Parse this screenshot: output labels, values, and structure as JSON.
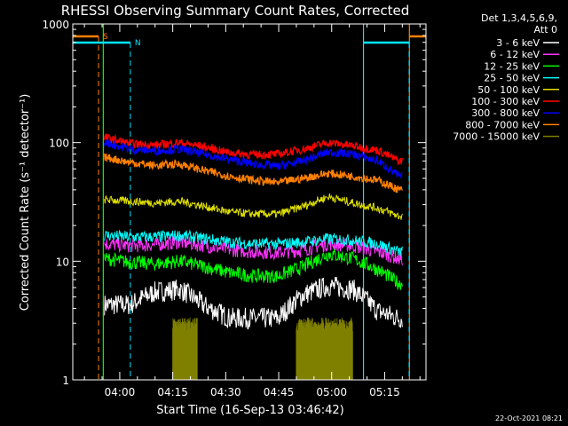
{
  "chart_data": {
    "type": "line",
    "title": "RHESSI Observing Summary Count Rates, Corrected",
    "xlabel": "Start Time (16-Sep-13 03:46:42)",
    "ylabel": "Corrected Count Rate (s⁻¹ detector⁻¹)",
    "x_unit": "minutes",
    "xlim": [
      "03:46:42",
      "05:26:42"
    ],
    "ylim": [
      1,
      1000
    ],
    "yscale": "log",
    "x_ticks": [
      "04:00",
      "04:15",
      "04:30",
      "04:45",
      "05:00",
      "05:15"
    ],
    "y_ticks": [
      "1",
      "10",
      "100",
      "1000"
    ],
    "legend_header": [
      "Det 1,3,4,5,6,9,",
      "Att 0"
    ],
    "legend_position": "top-right",
    "footer_date": "22-Oct-2021 08:21",
    "markers": [
      {
        "label": "S",
        "color": "#ff8000",
        "start": "03:46:42",
        "end": "03:54:00",
        "line_style": "dashed"
      },
      {
        "label": "N",
        "color": "#00e5ff",
        "start": "03:46:42",
        "end": "04:03:00",
        "line_style": "dashed"
      }
    ],
    "boundaries": [
      {
        "time": "03:55:20",
        "color": "#00ff00"
      },
      {
        "time": "05:09:00",
        "color": "#00e5ff"
      },
      {
        "time": "05:22:00",
        "color": "#ff8000"
      }
    ],
    "data_start": "03:55:40",
    "data_end": "05:20:00",
    "x_times": [
      "03:56",
      "04:03",
      "04:10",
      "04:17",
      "04:24",
      "04:31",
      "04:38",
      "04:45",
      "04:52",
      "04:59",
      "05:06",
      "05:13",
      "05:19"
    ],
    "series": [
      {
        "name": "3 - 6 keV",
        "color": "#ffffff",
        "values": [
          4.3,
          4.3,
          5.5,
          5.8,
          4.2,
          3.3,
          3.3,
          3.3,
          5.2,
          6.2,
          5.8,
          3.8,
          3.3
        ]
      },
      {
        "name": "6 - 12 keV",
        "color": "#ff33ff",
        "values": [
          14,
          13.5,
          13.8,
          14.5,
          13.5,
          12.5,
          12,
          11.8,
          12.5,
          14,
          13.5,
          12,
          10.5
        ]
      },
      {
        "name": "12 - 25 keV",
        "color": "#00ff00",
        "values": [
          10.5,
          9.8,
          9.5,
          10,
          9,
          8,
          7.5,
          7.5,
          9,
          11.5,
          10.5,
          8.5,
          6.5
        ]
      },
      {
        "name": "25 - 50 keV",
        "color": "#00ffff",
        "values": [
          16.5,
          16,
          16,
          16.5,
          15.5,
          14.5,
          14,
          14,
          14.5,
          15.5,
          15,
          14,
          12
        ]
      },
      {
        "name": "50 - 100 keV",
        "color": "#e0e000",
        "values": [
          33,
          32,
          31,
          32,
          29,
          26,
          25,
          25,
          29,
          35,
          31,
          28,
          24
        ]
      },
      {
        "name": "100 - 300 keV",
        "color": "#ff0000",
        "values": [
          110,
          98,
          95,
          100,
          92,
          82,
          79,
          80,
          88,
          100,
          94,
          86,
          70
        ]
      },
      {
        "name": "300 - 800 keV",
        "color": "#0000ff",
        "values": [
          100,
          88,
          85,
          88,
          80,
          72,
          66,
          63,
          70,
          83,
          80,
          70,
          52
        ]
      },
      {
        "name": "800 - 7000 keV",
        "color": "#ff8000",
        "values": [
          75,
          68,
          64,
          66,
          58,
          52,
          48,
          46,
          50,
          55,
          52,
          48,
          40
        ]
      },
      {
        "name": "7000 - 15000 keV",
        "color": "#808000",
        "values": [
          null,
          null,
          null,
          null,
          null,
          null,
          null,
          null,
          null,
          null,
          null,
          null,
          null
        ]
      }
    ],
    "attenuator_bursts": [
      {
        "start": "04:15:00",
        "end": "04:22:00",
        "level": 2.8
      },
      {
        "start": "04:50:00",
        "end": "05:06:00",
        "level": 2.8
      }
    ]
  }
}
